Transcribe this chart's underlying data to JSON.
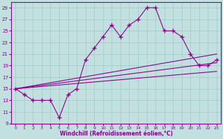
{
  "xlabel": "Windchill (Refroidissement éolien,°C)",
  "background_color": "#c2e0e0",
  "grid_color": "#a0c8c8",
  "line_color": "#880088",
  "xlim": [
    -0.5,
    23.5
  ],
  "ylim": [
    9,
    30
  ],
  "xticks": [
    0,
    1,
    2,
    3,
    4,
    5,
    6,
    7,
    8,
    9,
    10,
    11,
    12,
    13,
    14,
    15,
    16,
    17,
    18,
    19,
    20,
    21,
    22,
    23
  ],
  "yticks": [
    9,
    11,
    13,
    15,
    17,
    19,
    21,
    23,
    25,
    27,
    29
  ],
  "main_line": {
    "x": [
      0,
      1,
      2,
      3,
      4,
      5,
      6,
      7,
      8,
      9,
      10,
      11,
      12,
      13,
      14,
      15,
      16,
      17,
      18,
      19,
      20,
      21,
      22,
      23
    ],
    "y": [
      15,
      14,
      13,
      13,
      13,
      10,
      14,
      15,
      20,
      22,
      24,
      26,
      24,
      26,
      27,
      29,
      29,
      25,
      25,
      24,
      21,
      19,
      19,
      20
    ]
  },
  "diag_lines": [
    {
      "x": [
        0,
        23
      ],
      "y": [
        15,
        21
      ]
    },
    {
      "x": [
        0,
        23
      ],
      "y": [
        15,
        19.5
      ]
    },
    {
      "x": [
        0,
        23
      ],
      "y": [
        15,
        18
      ]
    }
  ]
}
